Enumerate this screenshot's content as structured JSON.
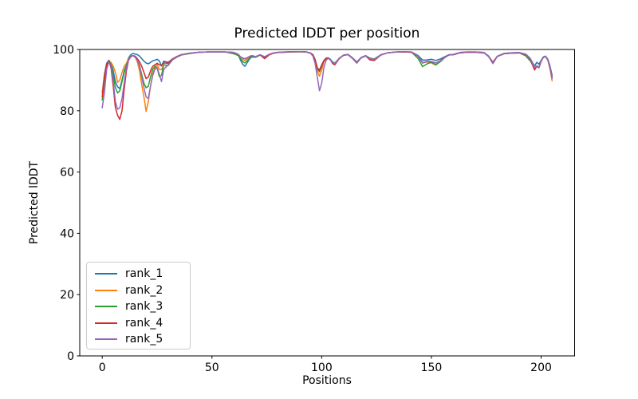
{
  "chart_data": {
    "type": "line",
    "title": "Predicted lDDT per position",
    "xlabel": "Positions",
    "ylabel": "Predicted lDDT",
    "xlim": [
      -10.25,
      215.25
    ],
    "ylim": [
      0,
      100
    ],
    "xticks": [
      0,
      50,
      100,
      150,
      200
    ],
    "yticks": [
      0,
      20,
      40,
      60,
      80,
      100
    ],
    "grid": false,
    "legend_position": "lower left",
    "x": [
      0,
      1,
      2,
      3,
      4,
      5,
      6,
      7,
      8,
      9,
      10,
      11,
      12,
      13,
      14,
      15,
      16,
      17,
      18,
      19,
      20,
      21,
      22,
      23,
      24,
      25,
      26,
      27,
      28,
      30,
      32,
      34,
      36,
      40,
      44,
      48,
      52,
      56,
      60,
      62,
      63,
      64,
      65,
      66,
      67,
      68,
      70,
      72,
      74,
      76,
      78,
      80,
      85,
      90,
      93,
      95,
      96,
      97,
      98,
      99,
      100,
      101,
      102,
      103,
      104,
      105,
      106,
      107,
      108,
      110,
      112,
      114,
      116,
      118,
      120,
      122,
      124,
      127,
      130,
      134,
      138,
      141,
      144,
      146,
      148,
      150,
      152,
      154,
      156,
      158,
      160,
      163,
      166,
      170,
      174,
      176,
      178,
      180,
      183,
      186,
      190,
      193,
      195,
      197,
      198,
      199,
      200,
      201,
      202,
      203,
      204,
      205
    ],
    "series": [
      {
        "name": "rank_1",
        "color": "#1f77b4",
        "values": [
          86,
          92,
          95.5,
          96.5,
          95.5,
          93,
          89.5,
          87.8,
          87.2,
          90,
          93,
          95,
          97.3,
          98.3,
          98.7,
          98.5,
          98.3,
          97.8,
          97,
          96.2,
          95.6,
          95.3,
          95.8,
          96.3,
          96.5,
          96.8,
          96.3,
          94.6,
          96.2,
          95.8,
          96.9,
          97.7,
          98.3,
          98.8,
          99.1,
          99.2,
          99.2,
          99.2,
          99,
          98.2,
          96.5,
          95.2,
          94.5,
          95.6,
          96.8,
          97.5,
          97.5,
          98.2,
          97.6,
          98.3,
          98.8,
          99,
          99.2,
          99.3,
          99.2,
          98.8,
          98.3,
          96.8,
          94,
          93.3,
          95,
          96.4,
          97.2,
          97.3,
          96.8,
          95.9,
          95.6,
          96.3,
          97.2,
          98.2,
          98.4,
          97.3,
          95.9,
          97.4,
          98,
          97.2,
          96.9,
          98.3,
          98.9,
          99.2,
          99.2,
          99.2,
          98,
          96.5,
          96.6,
          96.8,
          96.4,
          96.9,
          97.6,
          98.3,
          98.4,
          99,
          99.2,
          99.2,
          99,
          97.9,
          95.8,
          97.8,
          98.7,
          98.9,
          99,
          98.5,
          97.1,
          94.6,
          95.8,
          95.2,
          96.4,
          97.6,
          97.8,
          96.9,
          94.8,
          91.5
        ]
      },
      {
        "name": "rank_2",
        "color": "#ff7f0e",
        "values": [
          86,
          91.5,
          95,
          96.3,
          95.8,
          94.5,
          92.5,
          89.3,
          90,
          92.5,
          94.5,
          95.5,
          97,
          97.8,
          98,
          97.5,
          96,
          93,
          88.5,
          84.5,
          79.8,
          83,
          88,
          92,
          94,
          95,
          93.5,
          93.4,
          95,
          94.8,
          96.6,
          97.5,
          98.2,
          98.7,
          99.1,
          99.2,
          99.2,
          99.2,
          99,
          98.3,
          97.3,
          96.8,
          96.4,
          96.9,
          97.4,
          97.9,
          97.6,
          98.2,
          97.5,
          98.3,
          98.8,
          99,
          99.2,
          99.3,
          99.2,
          98.8,
          98.1,
          96.1,
          93,
          91.3,
          93.2,
          96,
          97,
          97.2,
          96.7,
          95.8,
          95.5,
          96.2,
          97.1,
          98.1,
          98.3,
          97.1,
          95.5,
          97.3,
          97.9,
          97.1,
          96.8,
          98.2,
          98.9,
          99.2,
          99.2,
          99.1,
          97.7,
          95.6,
          96,
          95.6,
          94.9,
          96.2,
          97.4,
          98.2,
          98.3,
          98.9,
          99.1,
          99.1,
          98.9,
          97.7,
          95.7,
          97.7,
          98.6,
          98.8,
          98.9,
          98.4,
          96.9,
          94.2,
          94.7,
          94.2,
          96.2,
          97.5,
          97.7,
          96.6,
          93.8,
          89.8
        ]
      },
      {
        "name": "rank_3",
        "color": "#2ca02c",
        "values": [
          83.5,
          90,
          94.5,
          96.2,
          95.2,
          91.5,
          87.5,
          85.8,
          86.5,
          89.5,
          92.5,
          94.8,
          96.8,
          97.8,
          98,
          97.6,
          96.6,
          94.8,
          91.8,
          89,
          87.5,
          88,
          91,
          93.5,
          94.5,
          94,
          91.2,
          91.5,
          95,
          94.8,
          96.7,
          97.5,
          98.2,
          98.7,
          99.1,
          99.2,
          99.2,
          99.2,
          98.6,
          98,
          96.9,
          96.1,
          95.6,
          96.3,
          97,
          97.7,
          97.5,
          98.2,
          97.5,
          98.3,
          98.8,
          99,
          99.2,
          99.3,
          99.2,
          98.8,
          98.2,
          96.5,
          93.8,
          92.7,
          94.5,
          96.3,
          97.1,
          97.2,
          96.7,
          95.8,
          95.5,
          96.2,
          97.1,
          98.1,
          98.3,
          97.2,
          95.8,
          97.3,
          97.9,
          97.1,
          96.8,
          98.2,
          98.9,
          99.2,
          99.2,
          99.1,
          97,
          94.4,
          95.3,
          95.8,
          95,
          96,
          97.3,
          98.2,
          98.3,
          98.9,
          99.1,
          99.1,
          98.9,
          97.7,
          95.7,
          97.7,
          98.6,
          98.8,
          98.9,
          97.9,
          96.3,
          94,
          94.6,
          94.1,
          96.2,
          97.5,
          97.7,
          96.7,
          94.2,
          90.8
        ]
      },
      {
        "name": "rank_4",
        "color": "#d62728",
        "values": [
          84.5,
          91,
          95,
          96.3,
          94,
          88,
          81,
          78.5,
          77.2,
          80,
          87,
          93,
          96.5,
          97.6,
          98,
          97.8,
          97,
          96,
          94.5,
          92.5,
          90.5,
          91,
          93,
          94.5,
          95,
          95.5,
          95,
          94.8,
          95.6,
          95.5,
          96.9,
          97.7,
          98.3,
          98.8,
          99.1,
          99.2,
          99.2,
          99.2,
          99,
          98.4,
          97.6,
          97.2,
          97,
          97.3,
          97.6,
          98,
          97.7,
          98.2,
          97,
          98.2,
          98.8,
          99,
          99.2,
          99.3,
          99.2,
          98.8,
          98.2,
          96.6,
          94,
          93,
          94.8,
          96.3,
          97.1,
          97.2,
          96.6,
          95.4,
          95,
          96,
          97,
          98.1,
          98.3,
          97.1,
          95.7,
          97.3,
          97.9,
          96.6,
          96.4,
          98.2,
          98.9,
          99.2,
          99.2,
          99.1,
          97.7,
          95.6,
          96,
          96,
          95.6,
          96.3,
          97.5,
          98.2,
          98.3,
          98.9,
          99.1,
          99.1,
          98.9,
          97.8,
          95.8,
          97.7,
          98.6,
          98.8,
          98.9,
          98.3,
          96.8,
          93.3,
          94.5,
          94,
          96.1,
          97.4,
          97.7,
          96.7,
          94.3,
          91
        ]
      },
      {
        "name": "rank_5",
        "color": "#9467bd",
        "values": [
          81,
          86,
          93.5,
          96,
          94.5,
          89.5,
          83,
          80.5,
          81,
          84,
          89,
          94,
          96.8,
          97.6,
          98,
          97.5,
          96.5,
          94.5,
          91,
          87.5,
          84.5,
          84,
          88,
          91.5,
          93.5,
          94,
          92,
          89.5,
          93.5,
          95,
          96.7,
          97.6,
          98.3,
          98.8,
          99.1,
          99.2,
          99.2,
          99.2,
          99,
          98.4,
          97.6,
          97.2,
          97,
          97.3,
          97.7,
          98,
          97.7,
          98.3,
          97.6,
          98.4,
          98.9,
          99.1,
          99.3,
          99.3,
          99.2,
          98.7,
          97.8,
          95.5,
          91,
          86.5,
          89,
          94,
          96.5,
          97.1,
          96.6,
          95.7,
          95.4,
          96.1,
          97.1,
          98.1,
          98.3,
          97.1,
          95.6,
          97.3,
          97.9,
          97,
          96.7,
          98.2,
          98.9,
          99.2,
          99.3,
          99.2,
          97.8,
          95.7,
          96.1,
          96.1,
          95.6,
          96.2,
          97.4,
          98.2,
          98.4,
          99,
          99.2,
          99.2,
          99,
          97.8,
          95.4,
          97.7,
          98.7,
          98.9,
          99,
          98.4,
          96.9,
          94,
          94.6,
          94.1,
          96.2,
          97.5,
          97.8,
          96.8,
          94.4,
          90.5
        ]
      }
    ]
  }
}
